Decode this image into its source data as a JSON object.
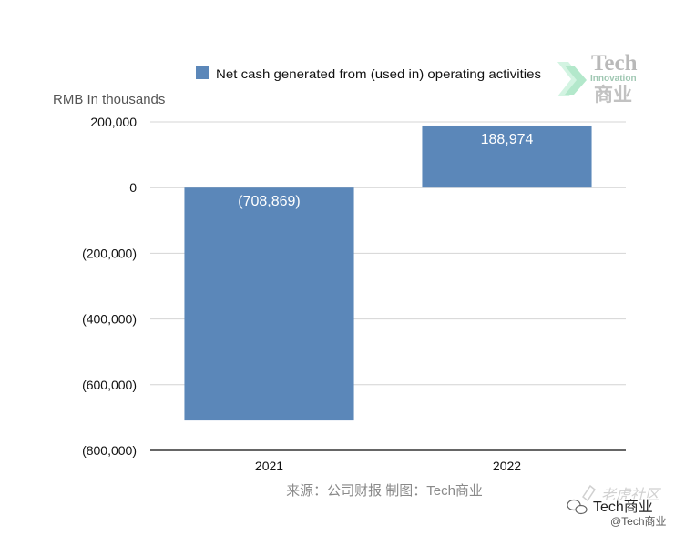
{
  "chart_data": {
    "type": "bar",
    "categories": [
      "2021",
      "2022"
    ],
    "series": [
      {
        "name": "Net cash generated from (used in) operating activities",
        "values": [
          -708869,
          188974
        ],
        "color": "#5b87b9"
      }
    ],
    "data_labels": [
      "(708,869)",
      "188,974"
    ],
    "title": "",
    "xlabel": "",
    "ylabel": "RMB In thousands",
    "ylim": [
      -800000,
      200000
    ],
    "yticks": [
      200000,
      0,
      -200000,
      -400000,
      -600000,
      -800000
    ],
    "ytick_labels": [
      "200,000",
      "0",
      "(200,000)",
      "(400,000)",
      "(600,000)",
      "(800,000)"
    ],
    "grid": true,
    "legend": "top-center"
  },
  "source_note": "来源：公司财报 制图：Tech商业",
  "logo": {
    "title": "Tech",
    "subtitle": "Innovation",
    "cn": "商业",
    "accent_color": "#b3e8cb"
  },
  "watermark": {
    "community": "老虎社区",
    "account": "Tech商业",
    "handle": "@Tech商业"
  }
}
